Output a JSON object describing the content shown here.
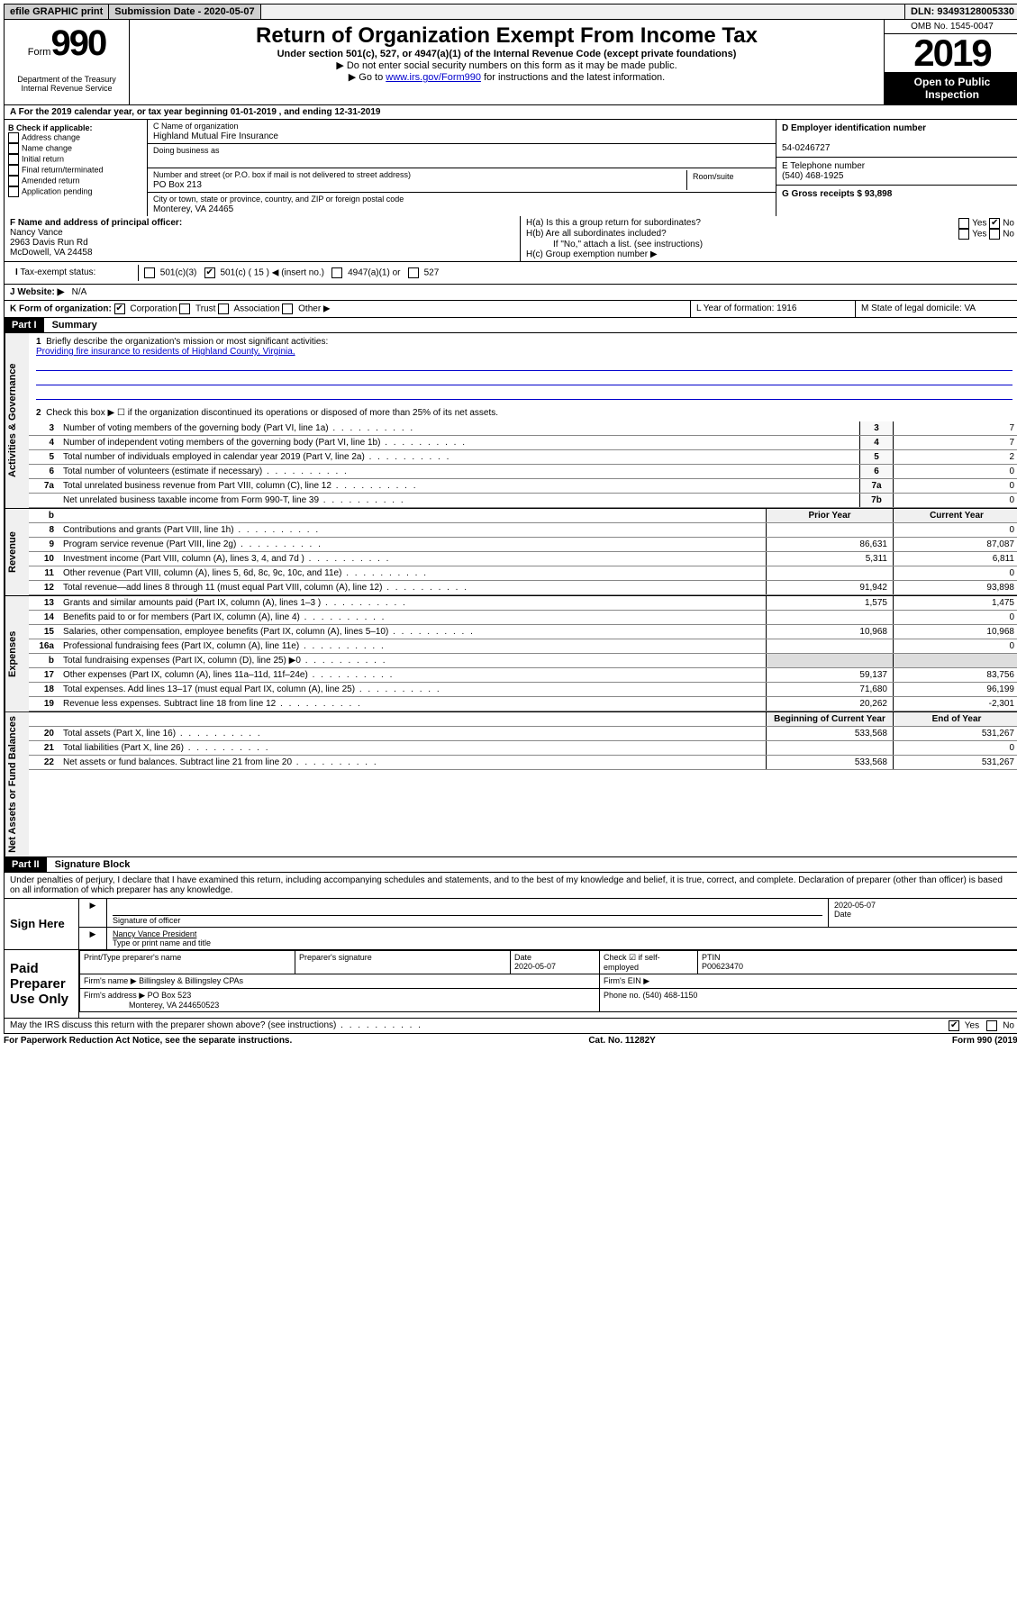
{
  "topbar": {
    "efile": "efile GRAPHIC print",
    "submission_label": "Submission Date - 2020-05-07",
    "dln": "DLN: 93493128005330"
  },
  "header": {
    "form_prefix": "Form",
    "form_number": "990",
    "title": "Return of Organization Exempt From Income Tax",
    "subtitle": "Under section 501(c), 527, or 4947(a)(1) of the Internal Revenue Code (except private foundations)",
    "note1": "▶ Do not enter social security numbers on this form as it may be made public.",
    "note2_prefix": "▶ Go to ",
    "note2_link": "www.irs.gov/Form990",
    "note2_suffix": " for instructions and the latest information.",
    "omb": "OMB No. 1545-0047",
    "year": "2019",
    "open": "Open to Public Inspection",
    "dept": "Department of the Treasury Internal Revenue Service"
  },
  "period": "For the 2019 calendar year, or tax year beginning 01-01-2019    , and ending 12-31-2019",
  "section_b": {
    "label": "B Check if applicable:",
    "opts": [
      "Address change",
      "Name change",
      "Initial return",
      "Final return/terminated",
      "Amended return",
      "Application pending"
    ]
  },
  "section_c": {
    "name_label": "C Name of organization",
    "name": "Highland Mutual Fire Insurance",
    "dba_label": "Doing business as",
    "addr_label": "Number and street (or P.O. box if mail is not delivered to street address)",
    "room_label": "Room/suite",
    "addr": "PO Box 213",
    "city_label": "City or town, state or province, country, and ZIP or foreign postal code",
    "city": "Monterey, VA  24465"
  },
  "section_d": {
    "ein_label": "D Employer identification number",
    "ein": "54-0246727",
    "phone_label": "E Telephone number",
    "phone": "(540) 468-1925",
    "gross_label": "G Gross receipts $ 93,898"
  },
  "section_f": {
    "label": "F  Name and address of principal officer:",
    "name": "Nancy Vance",
    "addr1": "2963 Davis Run Rd",
    "addr2": "McDowell, VA  24458"
  },
  "section_h": {
    "ha": "H(a)  Is this a group return for subordinates?",
    "hb": "H(b)  Are all subordinates included?",
    "hb_note": "If \"No,\" attach a list. (see instructions)",
    "hc": "H(c)  Group exemption number ▶",
    "yes": "Yes",
    "no": "No"
  },
  "tax_exempt": {
    "label": "Tax-exempt status:",
    "opt1": "501(c)(3)",
    "opt2": "501(c) ( 15 ) ◀ (insert no.)",
    "opt3": "4947(a)(1) or",
    "opt4": "527"
  },
  "website": {
    "label": "J   Website: ▶",
    "value": "N/A"
  },
  "k_row": {
    "label": "K Form of organization:",
    "corp": "Corporation",
    "trust": "Trust",
    "assoc": "Association",
    "other": "Other ▶"
  },
  "l_row": {
    "label": "L Year of formation: 1916"
  },
  "m_row": {
    "label": "M State of legal domicile: VA"
  },
  "part1": {
    "header": "Part I",
    "title": "Summary",
    "q1_label": "1",
    "q1": "Briefly describe the organization's mission or most significant activities:",
    "q1_text": "Providing fire insurance to residents of Highland County, Virginia,",
    "q2_label": "2",
    "q2": "Check this box ▶ ☐  if the organization discontinued its operations or disposed of more than 25% of its net assets."
  },
  "gov_rows": [
    {
      "n": "3",
      "t": "Number of voting members of the governing body (Part VI, line 1a)",
      "box": "3",
      "v": "7"
    },
    {
      "n": "4",
      "t": "Number of independent voting members of the governing body (Part VI, line 1b)",
      "box": "4",
      "v": "7"
    },
    {
      "n": "5",
      "t": "Total number of individuals employed in calendar year 2019 (Part V, line 2a)",
      "box": "5",
      "v": "2"
    },
    {
      "n": "6",
      "t": "Total number of volunteers (estimate if necessary)",
      "box": "6",
      "v": "0"
    },
    {
      "n": "7a",
      "t": "Total unrelated business revenue from Part VIII, column (C), line 12",
      "box": "7a",
      "v": "0"
    },
    {
      "n": "",
      "t": "Net unrelated business taxable income from Form 990-T, line 39",
      "box": "7b",
      "v": "0"
    }
  ],
  "col_headers": {
    "b": "b",
    "prior": "Prior Year",
    "current": "Current Year"
  },
  "rev_rows": [
    {
      "n": "8",
      "t": "Contributions and grants (Part VIII, line 1h)",
      "p": "",
      "c": "0"
    },
    {
      "n": "9",
      "t": "Program service revenue (Part VIII, line 2g)",
      "p": "86,631",
      "c": "87,087"
    },
    {
      "n": "10",
      "t": "Investment income (Part VIII, column (A), lines 3, 4, and 7d )",
      "p": "5,311",
      "c": "6,811"
    },
    {
      "n": "11",
      "t": "Other revenue (Part VIII, column (A), lines 5, 6d, 8c, 9c, 10c, and 11e)",
      "p": "",
      "c": "0"
    },
    {
      "n": "12",
      "t": "Total revenue—add lines 8 through 11 (must equal Part VIII, column (A), line 12)",
      "p": "91,942",
      "c": "93,898"
    }
  ],
  "exp_rows": [
    {
      "n": "13",
      "t": "Grants and similar amounts paid (Part IX, column (A), lines 1–3 )",
      "p": "1,575",
      "c": "1,475"
    },
    {
      "n": "14",
      "t": "Benefits paid to or for members (Part IX, column (A), line 4)",
      "p": "",
      "c": "0"
    },
    {
      "n": "15",
      "t": "Salaries, other compensation, employee benefits (Part IX, column (A), lines 5–10)",
      "p": "10,968",
      "c": "10,968"
    },
    {
      "n": "16a",
      "t": "Professional fundraising fees (Part IX, column (A), line 11e)",
      "p": "",
      "c": "0"
    },
    {
      "n": "b",
      "t": "Total fundraising expenses (Part IX, column (D), line 25) ▶0",
      "p": "",
      "c": "",
      "gray": true
    },
    {
      "n": "17",
      "t": "Other expenses (Part IX, column (A), lines 11a–11d, 11f–24e)",
      "p": "59,137",
      "c": "83,756"
    },
    {
      "n": "18",
      "t": "Total expenses. Add lines 13–17 (must equal Part IX, column (A), line 25)",
      "p": "71,680",
      "c": "96,199"
    },
    {
      "n": "19",
      "t": "Revenue less expenses. Subtract line 18 from line 12",
      "p": "20,262",
      "c": "-2,301"
    }
  ],
  "net_headers": {
    "begin": "Beginning of Current Year",
    "end": "End of Year"
  },
  "net_rows": [
    {
      "n": "20",
      "t": "Total assets (Part X, line 16)",
      "p": "533,568",
      "c": "531,267"
    },
    {
      "n": "21",
      "t": "Total liabilities (Part X, line 26)",
      "p": "",
      "c": "0"
    },
    {
      "n": "22",
      "t": "Net assets or fund balances. Subtract line 21 from line 20",
      "p": "533,568",
      "c": "531,267"
    }
  ],
  "part2": {
    "header": "Part II",
    "title": "Signature Block",
    "decl": "Under penalties of perjury, I declare that I have examined this return, including accompanying schedules and statements, and to the best of my knowledge and belief, it is true, correct, and complete. Declaration of preparer (other than officer) is based on all information of which preparer has any knowledge."
  },
  "sign": {
    "here": "Sign Here",
    "sig_label": "Signature of officer",
    "date": "2020-05-07",
    "date_label": "Date",
    "name": "Nancy Vance President",
    "name_label": "Type or print name and title"
  },
  "paid": {
    "label": "Paid Preparer Use Only",
    "h1": "Print/Type preparer's name",
    "h2": "Preparer's signature",
    "h3_date": "Date",
    "h3_val": "2020-05-07",
    "h4": "Check ☑ if self-employed",
    "h5": "PTIN",
    "ptin": "P00623470",
    "firm_name_label": "Firm's name    ▶",
    "firm_name": "Billingsley & Billingsley CPAs",
    "firm_ein_label": "Firm's EIN ▶",
    "firm_addr_label": "Firm's address ▶",
    "firm_addr": "PO Box 523",
    "firm_city": "Monterey, VA  244650523",
    "phone_label": "Phone no. (540) 468-1150"
  },
  "footer": {
    "discuss": "May the IRS discuss this return with the preparer shown above? (see instructions)",
    "yes": "Yes",
    "no": "No",
    "paperwork": "For Paperwork Reduction Act Notice, see the separate instructions.",
    "cat": "Cat. No. 11282Y",
    "form": "Form 990 (2019)"
  },
  "side_labels": {
    "gov": "Activities & Governance",
    "rev": "Revenue",
    "exp": "Expenses",
    "net": "Net Assets or Fund Balances"
  }
}
